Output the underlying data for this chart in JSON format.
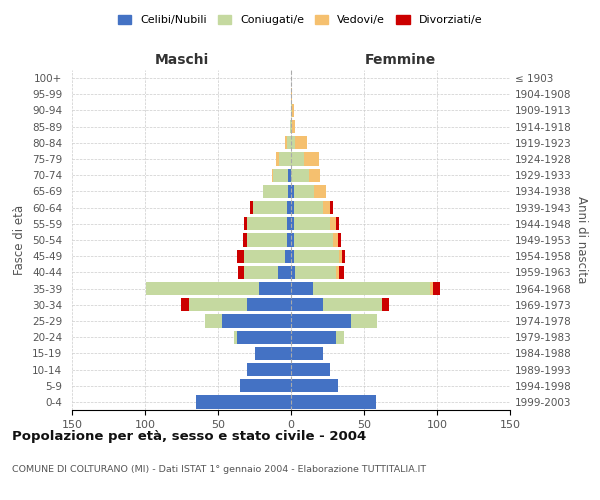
{
  "age_groups": [
    "0-4",
    "5-9",
    "10-14",
    "15-19",
    "20-24",
    "25-29",
    "30-34",
    "35-39",
    "40-44",
    "45-49",
    "50-54",
    "55-59",
    "60-64",
    "65-69",
    "70-74",
    "75-79",
    "80-84",
    "85-89",
    "90-94",
    "95-99",
    "100+"
  ],
  "birth_years": [
    "1999-2003",
    "1994-1998",
    "1989-1993",
    "1984-1988",
    "1979-1983",
    "1974-1978",
    "1969-1973",
    "1964-1968",
    "1959-1963",
    "1954-1958",
    "1949-1953",
    "1944-1948",
    "1939-1943",
    "1934-1938",
    "1929-1933",
    "1924-1928",
    "1919-1923",
    "1914-1918",
    "1909-1913",
    "1904-1908",
    "≤ 1903"
  ],
  "maschi": {
    "celibi": [
      65,
      35,
      30,
      25,
      37,
      47,
      30,
      22,
      9,
      4,
      3,
      3,
      3,
      2,
      2,
      0,
      0,
      0,
      0,
      0,
      0
    ],
    "coniugati": [
      0,
      0,
      0,
      0,
      2,
      12,
      40,
      77,
      23,
      28,
      27,
      27,
      23,
      17,
      10,
      8,
      3,
      1,
      0,
      0,
      0
    ],
    "vedovi": [
      0,
      0,
      0,
      0,
      0,
      0,
      0,
      0,
      0,
      0,
      0,
      0,
      0,
      0,
      1,
      2,
      1,
      0,
      0,
      0,
      0
    ],
    "divorziati": [
      0,
      0,
      0,
      0,
      0,
      0,
      5,
      0,
      4,
      5,
      3,
      2,
      2,
      0,
      0,
      0,
      0,
      0,
      0,
      0,
      0
    ]
  },
  "femmine": {
    "nubili": [
      58,
      32,
      27,
      22,
      31,
      41,
      22,
      15,
      3,
      2,
      2,
      2,
      2,
      2,
      0,
      0,
      0,
      0,
      0,
      0,
      0
    ],
    "coniugate": [
      0,
      0,
      0,
      0,
      5,
      18,
      40,
      80,
      28,
      31,
      27,
      25,
      20,
      14,
      12,
      9,
      3,
      1,
      1,
      0,
      0
    ],
    "vedove": [
      0,
      0,
      0,
      0,
      0,
      0,
      0,
      2,
      2,
      2,
      3,
      4,
      5,
      8,
      8,
      10,
      8,
      2,
      1,
      1,
      0
    ],
    "divorziate": [
      0,
      0,
      0,
      0,
      0,
      0,
      5,
      5,
      3,
      2,
      2,
      2,
      2,
      0,
      0,
      0,
      0,
      0,
      0,
      0,
      0
    ]
  },
  "colors": {
    "celibi_nubili": "#4472c4",
    "coniugati_e": "#c5d9a0",
    "vedovi_e": "#f5c06f",
    "divorziati_e": "#cc0000"
  },
  "xlim": 150,
  "title": "Popolazione per età, sesso e stato civile - 2004",
  "subtitle": "COMUNE DI COLTURANO (MI) - Dati ISTAT 1° gennaio 2004 - Elaborazione TUTTITALIA.IT",
  "xlabel_left": "Maschi",
  "xlabel_right": "Femmine",
  "ylabel_left": "Fasce di età",
  "ylabel_right": "Anni di nascita",
  "legend_labels": [
    "Celibi/Nubili",
    "Coniugati/e",
    "Vedovi/e",
    "Divorziati/e"
  ],
  "background_color": "#ffffff",
  "grid_color": "#cccccc",
  "figsize": [
    6.0,
    5.0
  ],
  "dpi": 100
}
